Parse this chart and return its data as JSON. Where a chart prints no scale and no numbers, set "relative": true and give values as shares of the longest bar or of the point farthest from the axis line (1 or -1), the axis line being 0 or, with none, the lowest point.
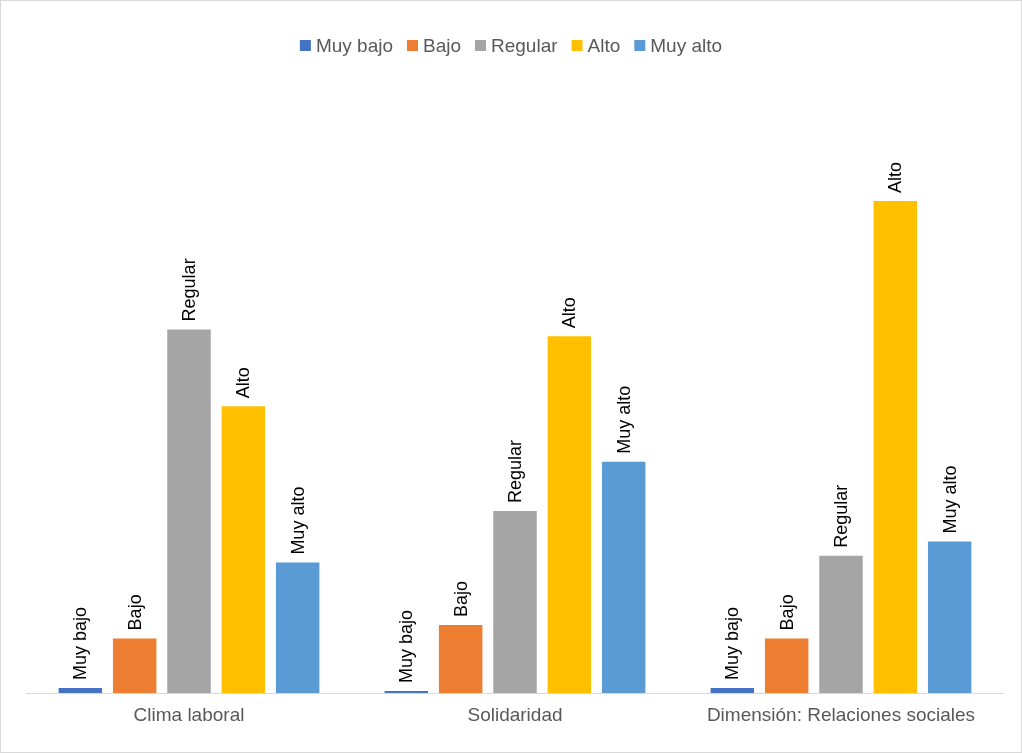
{
  "chart_data": {
    "type": "bar",
    "relative": true,
    "legend": "top",
    "categories": [
      "Clima laboral",
      "Solidaridad",
      "Dimensión: Relaciones sociales"
    ],
    "series": [
      {
        "name": "Muy bajo",
        "color": "#4472c4",
        "values": [
          0.01,
          0.004,
          0.01
        ]
      },
      {
        "name": "Bajo",
        "color": "#ed7d31",
        "values": [
          0.111,
          0.138,
          0.111
        ]
      },
      {
        "name": "Regular",
        "color": "#a5a5a5",
        "values": [
          0.739,
          0.37,
          0.279
        ]
      },
      {
        "name": "Alto",
        "color": "#ffc000",
        "values": [
          0.583,
          0.725,
          1
        ]
      },
      {
        "name": "Muy alto",
        "color": "#5b9bd5",
        "values": [
          0.265,
          0.47,
          0.308
        ]
      }
    ]
  }
}
